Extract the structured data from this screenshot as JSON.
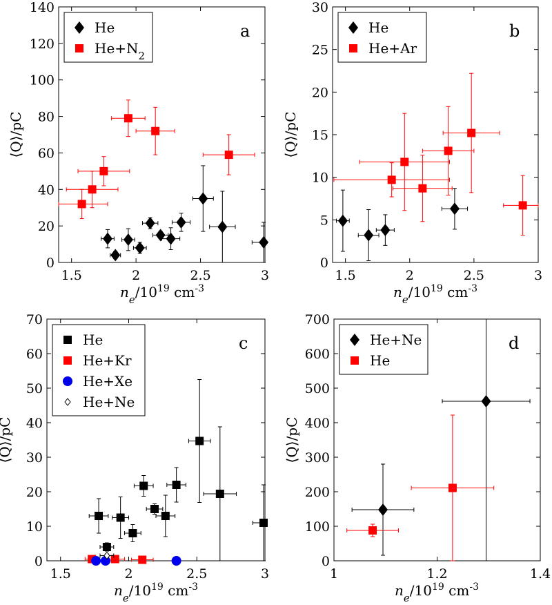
{
  "figure": {
    "xlabel": "n_e/10^19 cm^-3",
    "ylabel": "⟨Q⟩/pC"
  },
  "chart_data": [
    {
      "type": "scatter",
      "panel": "a",
      "xlim": [
        1.4,
        3.0
      ],
      "ylim": [
        0,
        140
      ],
      "xticks": [
        1.5,
        2,
        2.5,
        3
      ],
      "yticks": [
        0,
        20,
        40,
        60,
        80,
        100,
        120,
        140
      ],
      "xlabel": "n_e/10^19 cm^-3",
      "ylabel": "⟨Q⟩/pC",
      "legend_position": "top-left",
      "series": [
        {
          "name": "He",
          "marker": "diamond",
          "color": "#000000",
          "legend_label": "He",
          "points": [
            {
              "x": 1.78,
              "y": 13,
              "xerr": 0.05,
              "yerr": 5
            },
            {
              "x": 1.84,
              "y": 4,
              "xerr": 0.04,
              "yerr": 2
            },
            {
              "x": 1.94,
              "y": 12.5,
              "xerr": 0.05,
              "yerr": 6
            },
            {
              "x": 2.03,
              "y": 8,
              "xerr": 0.05,
              "yerr": 3
            },
            {
              "x": 2.11,
              "y": 21.5,
              "xerr": 0.06,
              "yerr": 3
            },
            {
              "x": 2.19,
              "y": 15,
              "xerr": 0.06,
              "yerr": 2
            },
            {
              "x": 2.27,
              "y": 13,
              "xerr": 0.07,
              "yerr": 6
            },
            {
              "x": 2.35,
              "y": 22,
              "xerr": 0.07,
              "yerr": 5
            },
            {
              "x": 2.52,
              "y": 35,
              "xerr": 0.08,
              "yerr": 18
            },
            {
              "x": 2.67,
              "y": 19.5,
              "xerr": 0.1,
              "yerr": 19.5
            },
            {
              "x": 2.99,
              "y": 11,
              "xerr": 0.09,
              "yerr": 11
            }
          ]
        },
        {
          "name": "He+N2",
          "marker": "square",
          "color": "#ff0000",
          "legend_label": "He+N",
          "legend_subscript": "2",
          "points": [
            {
              "x": 1.58,
              "y": 32,
              "xerr": 0.2,
              "yerr": 8
            },
            {
              "x": 1.66,
              "y": 40,
              "xerr": 0.2,
              "yerr": 10
            },
            {
              "x": 1.75,
              "y": 50,
              "xerr": 0.2,
              "yerr": 8
            },
            {
              "x": 1.94,
              "y": 79,
              "xerr": 0.13,
              "yerr": 10
            },
            {
              "x": 2.15,
              "y": 72,
              "xerr": 0.15,
              "yerr": 13
            },
            {
              "x": 2.72,
              "y": 59,
              "xerr": 0.2,
              "yerr": 11
            }
          ]
        }
      ]
    },
    {
      "type": "scatter",
      "panel": "b",
      "xlim": [
        1.4,
        3.0
      ],
      "ylim": [
        0,
        30
      ],
      "xticks": [
        1.5,
        2,
        2.5,
        3
      ],
      "yticks": [
        0,
        5,
        10,
        15,
        20,
        25,
        30
      ],
      "xlabel": "n_e/10^19 cm^-3",
      "ylabel": "⟨Q⟩/pC",
      "legend_position": "top-left",
      "series": [
        {
          "name": "He",
          "marker": "diamond",
          "color": "#000000",
          "legend_label": "He",
          "points": [
            {
              "x": 1.48,
              "y": 4.9,
              "xerr": 0.05,
              "yerr": 3.6
            },
            {
              "x": 1.68,
              "y": 3.2,
              "xerr": 0.08,
              "yerr": 3
            },
            {
              "x": 1.81,
              "y": 3.8,
              "xerr": 0.07,
              "yerr": 1.8
            },
            {
              "x": 2.35,
              "y": 6.3,
              "xerr": 0.1,
              "yerr": 2.4
            }
          ]
        },
        {
          "name": "He+Ar",
          "marker": "square",
          "color": "#ff0000",
          "legend_label": "He+Ar",
          "points": [
            {
              "x": 1.86,
              "y": 9.7,
              "xerr": 0.45,
              "yerr": 2
            },
            {
              "x": 1.96,
              "y": 11.8,
              "xerr": 0.35,
              "yerr": 5.7
            },
            {
              "x": 2.1,
              "y": 8.7,
              "xerr": 0.23,
              "yerr": 3.9
            },
            {
              "x": 2.3,
              "y": 13.1,
              "xerr": 0.2,
              "yerr": 5.2
            },
            {
              "x": 2.48,
              "y": 15.2,
              "xerr": 0.22,
              "yerr": 7
            },
            {
              "x": 2.88,
              "y": 6.7,
              "xerr": 0.15,
              "yerr": 3.5
            }
          ]
        }
      ]
    },
    {
      "type": "scatter",
      "panel": "c",
      "xlim": [
        1.4,
        3.0
      ],
      "ylim": [
        0,
        70
      ],
      "xticks": [
        1.5,
        2,
        2.5,
        3
      ],
      "yticks": [
        0,
        10,
        20,
        30,
        40,
        50,
        60,
        70
      ],
      "xlabel": "n_e/10^19 cm^-3",
      "ylabel": "⟨Q⟩/pC",
      "legend_position": "top-left",
      "series": [
        {
          "name": "He",
          "marker": "square",
          "color": "#000000",
          "legend_label": "He",
          "points": [
            {
              "x": 1.78,
              "y": 13,
              "xerr": 0.07,
              "yerr": 5
            },
            {
              "x": 1.84,
              "y": 4,
              "xerr": 0.05,
              "yerr": 1.2
            },
            {
              "x": 1.94,
              "y": 12.5,
              "xerr": 0.06,
              "yerr": 6
            },
            {
              "x": 2.03,
              "y": 8,
              "xerr": 0.06,
              "yerr": 2.5
            },
            {
              "x": 2.11,
              "y": 21.7,
              "xerr": 0.07,
              "yerr": 3
            },
            {
              "x": 2.19,
              "y": 15,
              "xerr": 0.06,
              "yerr": 1.5
            },
            {
              "x": 2.27,
              "y": 13,
              "xerr": 0.07,
              "yerr": 6
            },
            {
              "x": 2.35,
              "y": 22,
              "xerr": 0.07,
              "yerr": 5
            },
            {
              "x": 2.52,
              "y": 34.7,
              "xerr": 0.08,
              "yerr": 17.8
            },
            {
              "x": 2.67,
              "y": 19.4,
              "xerr": 0.12,
              "yerr": 19.4
            },
            {
              "x": 2.99,
              "y": 11,
              "xerr": 0.08,
              "yerr": 11
            }
          ]
        },
        {
          "name": "He+Kr",
          "marker": "square",
          "color": "#ff0000",
          "legend_label": "He+Kr",
          "points": [
            {
              "x": 1.73,
              "y": 0.5,
              "xerr": 0.05,
              "yerr": 0.2
            },
            {
              "x": 1.9,
              "y": 0.5,
              "xerr": 0.07,
              "yerr": 0.2
            },
            {
              "x": 2.1,
              "y": 0.3,
              "xerr": 0.08,
              "yerr": 0.2
            }
          ]
        },
        {
          "name": "He+Xe",
          "marker": "circle",
          "color": "#0000ee",
          "legend_label": "He+Xe",
          "points": [
            {
              "x": 1.76,
              "y": 0,
              "xerr": 0,
              "yerr": 0
            },
            {
              "x": 1.83,
              "y": 0,
              "xerr": 0,
              "yerr": 0
            },
            {
              "x": 2.35,
              "y": 0,
              "xerr": 0,
              "yerr": 0
            }
          ]
        },
        {
          "name": "He+Ne",
          "marker": "open-diamond",
          "color": "#000000",
          "legend_label": "He+Ne",
          "points": [
            {
              "x": 1.84,
              "y": 1.5,
              "xerr": 0.05,
              "yerr": 0.5
            }
          ]
        }
      ]
    },
    {
      "type": "scatter",
      "panel": "d",
      "xlim": [
        1.0,
        1.4
      ],
      "ylim": [
        0,
        700
      ],
      "xticks": [
        1,
        1.2,
        1.4
      ],
      "yticks": [
        0,
        100,
        200,
        300,
        400,
        500,
        600,
        700
      ],
      "xlabel": "n_e/10^19 cm^-3",
      "ylabel": "⟨Q⟩/pC",
      "legend_position": "top-left",
      "series": [
        {
          "name": "He+Ne",
          "marker": "diamond",
          "color": "#000000",
          "legend_label": "He+Ne",
          "points": [
            {
              "x": 1.095,
              "y": 148,
              "xerr": 0.06,
              "yerr": 132
            },
            {
              "x": 1.295,
              "y": 462,
              "xerr": 0.085,
              "yerr": 462
            }
          ]
        },
        {
          "name": "He",
          "marker": "square",
          "color": "#ff0000",
          "legend_label": "He",
          "points": [
            {
              "x": 1.075,
              "y": 88,
              "xerr": 0.05,
              "yerr": 18
            },
            {
              "x": 1.23,
              "y": 211,
              "xerr": 0.08,
              "yerr": 211
            }
          ]
        }
      ]
    }
  ]
}
